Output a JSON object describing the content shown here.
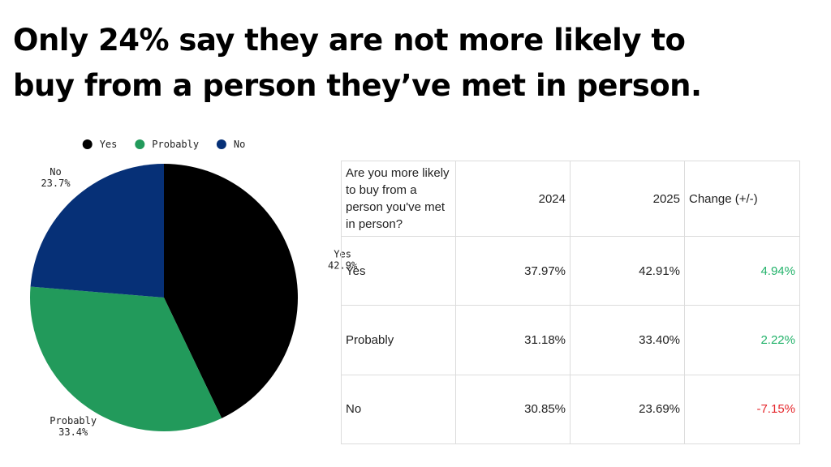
{
  "headline": {
    "line1": "Only 24% say they are not more likely to",
    "line2": "buy from a person they’ve met in person."
  },
  "chart_data": {
    "type": "pie",
    "legend_position": "top",
    "slices": [
      {
        "label": "Yes",
        "value": 42.9,
        "display": "42.9%",
        "color": "#000000"
      },
      {
        "label": "Probably",
        "value": 33.4,
        "display": "33.4%",
        "color": "#229a5b"
      },
      {
        "label": "No",
        "value": 23.7,
        "display": "23.7%",
        "color": "#063077"
      }
    ]
  },
  "table": {
    "question": "Are you more likely to buy from a person you've met in person?",
    "columns": [
      "2024",
      "2025",
      "Change (+/-)"
    ],
    "rows": [
      {
        "label": "Yes",
        "y2024": "37.97%",
        "y2025": "42.91%",
        "change": "4.94%",
        "change_color": "#22b26a"
      },
      {
        "label": "Probably",
        "y2024": "31.18%",
        "y2025": "33.40%",
        "change": "2.22%",
        "change_color": "#22b26a"
      },
      {
        "label": "No",
        "y2024": "30.85%",
        "y2025": "23.69%",
        "change": "-7.15%",
        "change_color": "#e5262b"
      }
    ]
  }
}
